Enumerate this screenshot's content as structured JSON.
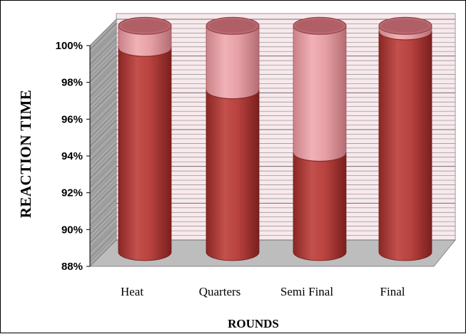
{
  "chart_data": {
    "type": "bar",
    "subtype": "stacked-cylinder-3d",
    "categories": [
      "Heat",
      "Quarters",
      "Semi Final",
      "Final"
    ],
    "series": [
      {
        "values": [
          99.1,
          96.8,
          93.4,
          100.0
        ],
        "color": "#b5403d"
      },
      {
        "values": [
          1.2,
          3.5,
          6.9,
          0.3
        ],
        "color": "#e79aa0"
      }
    ],
    "xlabel": "ROUNDS",
    "ylabel": "REACTION TIME",
    "ylim": [
      88,
      100
    ],
    "yticks": [
      "88%",
      "90%",
      "92%",
      "94%",
      "96%",
      "98%",
      "100%"
    ],
    "ytick_values": [
      88,
      90,
      92,
      94,
      96,
      98,
      100
    ],
    "grid": true,
    "legend": "none",
    "colors": {
      "back_wall": "#f8e9ec",
      "side_wall": "#a3a3a3",
      "floor": "#bdbdbd",
      "grid_line": "#8a8a8a"
    }
  }
}
